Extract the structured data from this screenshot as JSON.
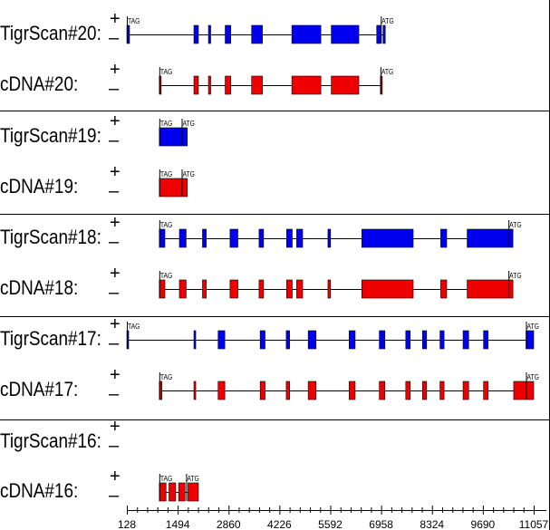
{
  "plus_symbol": "+",
  "minus_symbol": "–",
  "colors": {
    "tigrscan": "#0000ee",
    "cdna": "#ee0000",
    "line": "#000000"
  },
  "axis": {
    "min": 128,
    "max": 11057,
    "tick_labels": [
      "128",
      "1494",
      "2860",
      "4226",
      "5592",
      "6958",
      "8324",
      "9690",
      "11057"
    ]
  },
  "tracks": [
    {
      "label": "TigrScan#20:",
      "type": "tigrscan",
      "line": [
        128,
        7070
      ],
      "exons": [
        [
          128,
          200
        ],
        [
          1930,
          2050
        ],
        [
          2320,
          2380
        ],
        [
          2770,
          2920
        ],
        [
          3480,
          3770
        ],
        [
          4560,
          5340
        ],
        [
          5620,
          6360
        ],
        [
          6840,
          6950
        ],
        [
          7010,
          7070
        ]
      ],
      "tags": [
        {
          "text": "TAG",
          "at": 128
        },
        {
          "text": "ATG",
          "at": 6950
        }
      ]
    },
    {
      "label": "cDNA#20:",
      "type": "cdna",
      "line": [
        1000,
        6990
      ],
      "exons": [
        [
          1000,
          1050
        ],
        [
          1930,
          2050
        ],
        [
          2320,
          2380
        ],
        [
          2770,
          2920
        ],
        [
          3480,
          3770
        ],
        [
          4560,
          5340
        ],
        [
          5620,
          6360
        ],
        [
          6940,
          6990
        ]
      ],
      "tags": [
        {
          "text": "TAG",
          "at": 1000
        },
        {
          "text": "ATG",
          "at": 6940
        }
      ]
    },
    {
      "label": "TigrScan#19:",
      "type": "tigrscan",
      "line": [
        1000,
        1750
      ],
      "exons": [
        [
          1000,
          1750
        ]
      ],
      "tags": [
        {
          "text": "TAG",
          "at": 1000
        },
        {
          "text": "ATG",
          "at": 1600
        }
      ]
    },
    {
      "label": "cDNA#19:",
      "type": "cdna",
      "line": [
        1000,
        1750
      ],
      "exons": [
        [
          1000,
          1750
        ]
      ],
      "tags": [
        {
          "text": "TAG",
          "at": 1000
        },
        {
          "text": "ATG",
          "at": 1600
        }
      ]
    },
    {
      "label": "TigrScan#18:",
      "type": "tigrscan",
      "line": [
        1000,
        10500
      ],
      "exons": [
        [
          1000,
          1150
        ],
        [
          1540,
          1720
        ],
        [
          2160,
          2260
        ],
        [
          2900,
          3110
        ],
        [
          3680,
          3800
        ],
        [
          4420,
          4570
        ],
        [
          4690,
          4850
        ],
        [
          5530,
          5600
        ],
        [
          6440,
          7820
        ],
        [
          8560,
          8720
        ],
        [
          9270,
          10500
        ]
      ],
      "tags": [
        {
          "text": "TAG",
          "at": 1000
        },
        {
          "text": "ATG",
          "at": 10380
        }
      ]
    },
    {
      "label": "cDNA#18:",
      "type": "cdna",
      "line": [
        1000,
        10500
      ],
      "exons": [
        [
          1000,
          1150
        ],
        [
          1540,
          1720
        ],
        [
          2160,
          2260
        ],
        [
          2900,
          3110
        ],
        [
          3680,
          3800
        ],
        [
          4420,
          4570
        ],
        [
          4690,
          4850
        ],
        [
          5530,
          5600
        ],
        [
          6440,
          7820
        ],
        [
          8560,
          8720
        ],
        [
          9270,
          10500
        ]
      ],
      "tags": [
        {
          "text": "TAG",
          "at": 1000
        },
        {
          "text": "ATG",
          "at": 10380
        }
      ]
    },
    {
      "label": "TigrScan#17:",
      "type": "tigrscan",
      "line": [
        128,
        11057
      ],
      "exons": [
        [
          128,
          170
        ],
        [
          1930,
          1970
        ],
        [
          2580,
          2760
        ],
        [
          3710,
          3840
        ],
        [
          4410,
          4500
        ],
        [
          5000,
          5210
        ],
        [
          6100,
          6260
        ],
        [
          6910,
          7060
        ],
        [
          7620,
          7740
        ],
        [
          8070,
          8180
        ],
        [
          8540,
          8650
        ],
        [
          9160,
          9310
        ],
        [
          9710,
          9830
        ],
        [
          10850,
          11057
        ]
      ],
      "tags": [
        {
          "text": "TAG",
          "at": 128
        },
        {
          "text": "ATG",
          "at": 10850
        }
      ]
    },
    {
      "label": "cDNA#17:",
      "type": "cdna",
      "line": [
        1000,
        11057
      ],
      "exons": [
        [
          1000,
          1070
        ],
        [
          1930,
          1970
        ],
        [
          2580,
          2760
        ],
        [
          3710,
          3840
        ],
        [
          4410,
          4500
        ],
        [
          5000,
          5210
        ],
        [
          6100,
          6260
        ],
        [
          6910,
          7060
        ],
        [
          7620,
          7740
        ],
        [
          8070,
          8180
        ],
        [
          8540,
          8650
        ],
        [
          9160,
          9310
        ],
        [
          9710,
          9830
        ],
        [
          10520,
          11057
        ]
      ],
      "tags": [
        {
          "text": "TAG",
          "at": 1000
        },
        {
          "text": "ATG",
          "at": 10850
        }
      ]
    },
    {
      "label": "TigrScan#16:",
      "type": "tigrscan",
      "line": null,
      "exons": [],
      "tags": []
    },
    {
      "label": "cDNA#16:",
      "type": "cdna",
      "line": [
        1000,
        2050
      ],
      "exons": [
        [
          1000,
          1180
        ],
        [
          1260,
          1440
        ],
        [
          1520,
          1690
        ],
        [
          1770,
          2050
        ]
      ],
      "tags": [
        {
          "text": "TAG",
          "at": 1000
        },
        {
          "text": "ATG",
          "at": 1720
        }
      ]
    }
  ]
}
